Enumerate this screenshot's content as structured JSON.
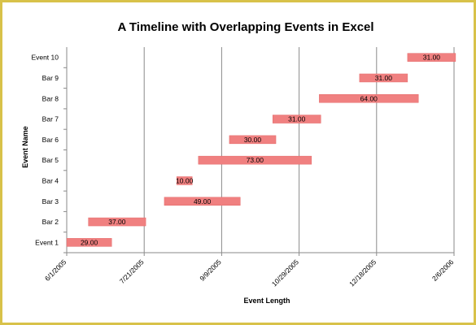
{
  "chart_data": {
    "type": "bar",
    "title": "A Timeline with Overlapping Events in Excel",
    "xlabel": "Event Length",
    "ylabel": "Event Name",
    "x_tick_labels": [
      "6/1/2005",
      "7/21/2005",
      "9/9/2005",
      "10/29/2005",
      "12/18/2005",
      "2/6/2006"
    ],
    "x_ticks_days": [
      0,
      50,
      100,
      150,
      200,
      250
    ],
    "xlim_days": [
      0,
      250
    ],
    "x_origin_date": "6/1/2005",
    "grid": "vertical",
    "bar_color": "#f08080",
    "events": [
      {
        "name": "Event 1",
        "start": "6/1/2005",
        "length": 29.0,
        "label": "29.00"
      },
      {
        "name": "Bar 2",
        "start": "6/15/2005",
        "length": 37.0,
        "label": "37.00"
      },
      {
        "name": "Bar 3",
        "start": "8/3/2005",
        "length": 49.0,
        "label": "49.00"
      },
      {
        "name": "Bar 4",
        "start": "8/11/2005",
        "length": 10.0,
        "label": "10.00"
      },
      {
        "name": "Bar 5",
        "start": "8/25/2005",
        "length": 73.0,
        "label": "73.00"
      },
      {
        "name": "Bar 6",
        "start": "9/14/2005",
        "length": 30.0,
        "label": "30.00"
      },
      {
        "name": "Bar 7",
        "start": "10/12/2005",
        "length": 31.0,
        "label": "31.00"
      },
      {
        "name": "Bar 8",
        "start": "11/11/2005",
        "length": 64.0,
        "label": "64.00"
      },
      {
        "name": "Bar 9",
        "start": "12/7/2005",
        "length": 31.0,
        "label": "31.00"
      },
      {
        "name": "Event 10",
        "start": "1/7/2006",
        "length": 31.0,
        "label": "31.00"
      }
    ]
  }
}
